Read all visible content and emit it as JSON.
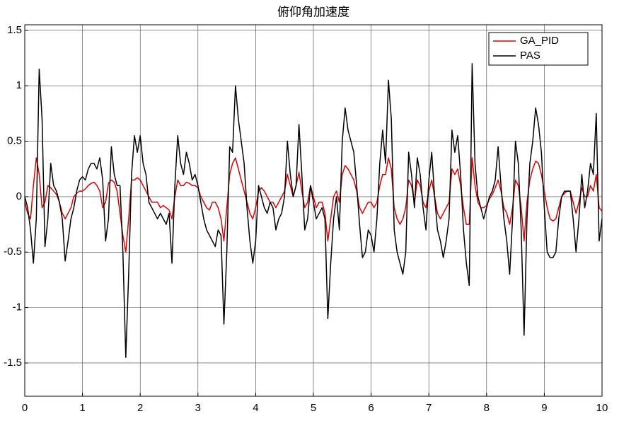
{
  "chart_data": {
    "type": "line",
    "title": "俯仰角加速度",
    "x": [
      0,
      0.05,
      0.1,
      0.15,
      0.2,
      0.25,
      0.3,
      0.35,
      0.4,
      0.45,
      0.5,
      0.55,
      0.6,
      0.65,
      0.7,
      0.75,
      0.8,
      0.85,
      0.9,
      0.95,
      1,
      1.05,
      1.1,
      1.15,
      1.2,
      1.25,
      1.3,
      1.35,
      1.4,
      1.45,
      1.5,
      1.55,
      1.6,
      1.65,
      1.7,
      1.75,
      1.8,
      1.85,
      1.9,
      1.95,
      2,
      2.05,
      2.1,
      2.15,
      2.2,
      2.25,
      2.3,
      2.35,
      2.4,
      2.45,
      2.5,
      2.55,
      2.6,
      2.65,
      2.7,
      2.75,
      2.8,
      2.85,
      2.9,
      2.95,
      3,
      3.05,
      3.1,
      3.15,
      3.2,
      3.25,
      3.3,
      3.35,
      3.4,
      3.45,
      3.5,
      3.55,
      3.6,
      3.65,
      3.7,
      3.75,
      3.8,
      3.85,
      3.9,
      3.95,
      4,
      4.05,
      4.1,
      4.15,
      4.2,
      4.25,
      4.3,
      4.35,
      4.4,
      4.45,
      4.5,
      4.55,
      4.6,
      4.65,
      4.7,
      4.75,
      4.8,
      4.85,
      4.9,
      4.95,
      5,
      5.05,
      5.1,
      5.15,
      5.2,
      5.25,
      5.3,
      5.35,
      5.4,
      5.45,
      5.5,
      5.55,
      5.6,
      5.65,
      5.7,
      5.75,
      5.8,
      5.85,
      5.9,
      5.95,
      6,
      6.05,
      6.1,
      6.15,
      6.2,
      6.25,
      6.3,
      6.35,
      6.4,
      6.45,
      6.5,
      6.55,
      6.6,
      6.65,
      6.7,
      6.75,
      6.8,
      6.85,
      6.9,
      6.95,
      7,
      7.05,
      7.1,
      7.15,
      7.2,
      7.25,
      7.3,
      7.35,
      7.4,
      7.45,
      7.5,
      7.55,
      7.6,
      7.65,
      7.7,
      7.75,
      7.8,
      7.85,
      7.9,
      7.95,
      8,
      8.05,
      8.1,
      8.15,
      8.2,
      8.25,
      8.3,
      8.35,
      8.4,
      8.45,
      8.5,
      8.55,
      8.6,
      8.65,
      8.7,
      8.75,
      8.8,
      8.85,
      8.9,
      8.95,
      9,
      9.05,
      9.1,
      9.15,
      9.2,
      9.25,
      9.3,
      9.35,
      9.4,
      9.45,
      9.5,
      9.55,
      9.6,
      9.65,
      9.7,
      9.75,
      9.8,
      9.85,
      9.9,
      9.95,
      10
    ],
    "series": [
      {
        "name": "GA_PID",
        "color": "#e00000",
        "values": [
          -0.05,
          -0.15,
          -0.2,
          0.1,
          0.35,
          0.2,
          -0.1,
          -0.05,
          0.1,
          0.08,
          0.05,
          0.02,
          -0.05,
          -0.15,
          -0.2,
          -0.15,
          -0.1,
          0,
          0.03,
          0.05,
          0.05,
          0.07,
          0.1,
          0.12,
          0.13,
          0.1,
          0.05,
          -0.1,
          -0.05,
          0.12,
          0.15,
          0.13,
          0.05,
          -0.15,
          -0.35,
          -0.5,
          -0.2,
          0.15,
          0.15,
          0.17,
          0.15,
          0.1,
          0.05,
          0,
          -0.05,
          -0.05,
          -0.05,
          -0.1,
          -0.08,
          -0.1,
          -0.12,
          -0.2,
          0,
          0.15,
          0.1,
          0.1,
          0.13,
          0.12,
          0.1,
          0.1,
          0.08,
          0,
          -0.05,
          -0.1,
          -0.12,
          -0.05,
          -0.05,
          -0.1,
          -0.2,
          -0.4,
          -0.1,
          0.2,
          0.3,
          0.35,
          0.25,
          0.15,
          0.05,
          -0.05,
          -0.15,
          -0.2,
          -0.1,
          0.05,
          0.08,
          0.05,
          0,
          -0.05,
          -0.05,
          -0.1,
          -0.05,
          0,
          0.05,
          0.2,
          0.1,
          0,
          0.1,
          0.22,
          0.05,
          -0.1,
          -0.05,
          0.1,
          0,
          -0.1,
          -0.05,
          -0.05,
          -0.15,
          -0.4,
          -0.2,
          0,
          0.05,
          -0.05,
          0.2,
          0.28,
          0.25,
          0.2,
          0.15,
          0.05,
          -0.1,
          -0.15,
          -0.1,
          -0.05,
          -0.05,
          -0.1,
          -0.05,
          0.1,
          0.2,
          0.2,
          0.35,
          0.25,
          -0.1,
          -0.2,
          -0.25,
          -0.2,
          -0.1,
          0.15,
          0.1,
          -0.05,
          0.15,
          0.1,
          -0.05,
          -0.1,
          0.05,
          0.15,
          0,
          -0.15,
          -0.2,
          -0.15,
          -0.1,
          -0.05,
          0.25,
          0.2,
          0.25,
          0.1,
          -0.1,
          -0.25,
          -0.25,
          0.35,
          0.1,
          -0.05,
          -0.1,
          -0.1,
          -0.08,
          -0.02,
          0.02,
          0.08,
          0.15,
          0.05,
          -0.1,
          -0.15,
          -0.25,
          -0.1,
          0.15,
          0.1,
          -0.1,
          -0.4,
          -0.05,
          0.15,
          0.25,
          0.32,
          0.3,
          0.2,
          0.05,
          -0.1,
          -0.2,
          -0.22,
          -0.2,
          -0.1,
          0,
          0.03,
          0.05,
          0.05,
          -0.05,
          -0.15,
          -0.05,
          0.08,
          0,
          0,
          0.1,
          0.05,
          0.2,
          -0.1,
          -0.13
        ]
      },
      {
        "name": "PAS",
        "color": "#000000",
        "values": [
          0,
          -0.1,
          -0.3,
          -0.6,
          -0.2,
          1.15,
          0.7,
          -0.45,
          -0.2,
          0.3,
          0.1,
          0.05,
          -0.05,
          -0.2,
          -0.58,
          -0.4,
          -0.2,
          -0.1,
          0.05,
          0.15,
          0.18,
          0.15,
          0.25,
          0.3,
          0.3,
          0.25,
          0.35,
          0.15,
          -0.4,
          -0.2,
          0.45,
          0.2,
          0.1,
          0.1,
          -0.5,
          -1.45,
          -0.7,
          0.2,
          0.55,
          0.4,
          0.55,
          0.3,
          0.2,
          -0.05,
          -0.1,
          -0.15,
          -0.2,
          -0.15,
          -0.2,
          -0.25,
          -0.15,
          -0.6,
          0.1,
          0.55,
          0.3,
          0.2,
          0.4,
          0.3,
          0.15,
          0.2,
          0.1,
          -0.05,
          -0.2,
          -0.3,
          -0.35,
          -0.4,
          -0.45,
          -0.3,
          -0.35,
          -1.15,
          -0.5,
          0.45,
          0.4,
          1.0,
          0.7,
          0.5,
          0.3,
          -0.1,
          -0.4,
          -0.6,
          -0.4,
          0.1,
          0,
          -0.1,
          -0.15,
          -0.05,
          -0.1,
          -0.3,
          -0.2,
          -0.15,
          0,
          0.5,
          0.2,
          0,
          0.1,
          0.65,
          0.2,
          -0.3,
          -0.2,
          0.1,
          -0.05,
          -0.2,
          -0.15,
          -0.1,
          -0.2,
          -1.1,
          -0.6,
          -0.2,
          0,
          -0.3,
          0.5,
          0.8,
          0.6,
          0.5,
          0.4,
          0.1,
          -0.25,
          -0.55,
          -0.5,
          -0.3,
          -0.35,
          -0.5,
          -0.2,
          0.3,
          0.6,
          0.3,
          1.05,
          0.7,
          -0.3,
          -0.5,
          -0.6,
          -0.7,
          -0.5,
          0.4,
          0.2,
          -0.1,
          0.35,
          0.2,
          -0.1,
          -0.3,
          0.15,
          0.4,
          0,
          -0.3,
          -0.4,
          -0.55,
          -0.4,
          -0.2,
          0.6,
          0.4,
          0.55,
          0.2,
          -0.3,
          -0.6,
          -0.8,
          1.2,
          0.3,
          0,
          -0.1,
          -0.2,
          -0.1,
          0,
          0.05,
          0.15,
          0.45,
          0.1,
          -0.2,
          -0.4,
          -0.7,
          -0.2,
          0.5,
          0.3,
          -0.3,
          -1.25,
          -0.2,
          0.3,
          0.5,
          0.8,
          0.65,
          0.4,
          -0.1,
          -0.5,
          -0.55,
          -0.55,
          -0.5,
          -0.2,
          0,
          0.05,
          0.05,
          0.05,
          -0.2,
          -0.5,
          -0.2,
          0.2,
          -0.1,
          0.05,
          0.3,
          0.2,
          0.75,
          -0.4,
          -0.2
        ]
      }
    ],
    "xlim": [
      0,
      10
    ],
    "xticks": [
      0,
      1,
      2,
      3,
      4,
      5,
      6,
      7,
      8,
      9,
      10
    ],
    "ylim": [
      -1.8,
      1.55
    ],
    "yticks": [
      -1.5,
      -1,
      -0.5,
      0,
      0.5,
      1,
      1.5
    ],
    "grid": true,
    "legend": "upper right"
  }
}
